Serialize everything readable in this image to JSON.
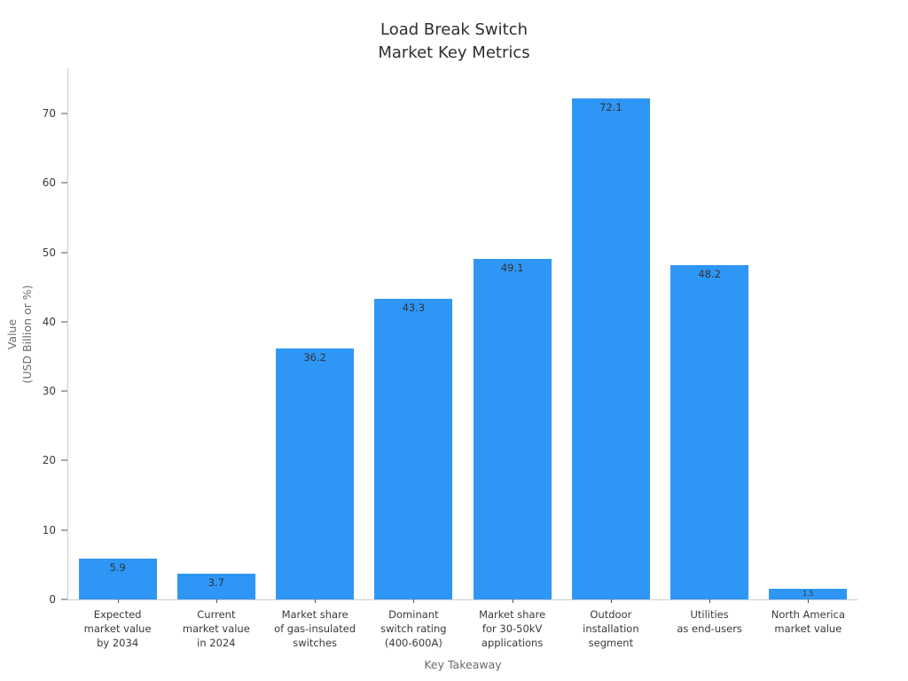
{
  "figure": {
    "title": "Load Break Switch\nMarket Key Metrics",
    "x_axis_title": "Key Takeaway",
    "y_axis_title": "Value\n(USD Billion or %)"
  },
  "chart_data": {
    "type": "bar",
    "title": "Load Break Switch Market Key Metrics",
    "xlabel": "Key Takeaway",
    "ylabel": "Value (USD Billion or %)",
    "categories": [
      "Expected market value by 2034",
      "Current market value in 2024",
      "Market share of gas-insulated switches",
      "Dominant switch rating (400-600A)",
      "Market share for 30-50kV applications",
      "Outdoor installation segment",
      "Utilities as end-users",
      "North America market value"
    ],
    "category_lines": [
      "Expected\nmarket value\nby 2034",
      "Current\nmarket value\nin 2024",
      "Market share\nof gas-insulated\nswitches",
      "Dominant\nswitch rating\n(400-600A)",
      "Market share\nfor 30-50kV\napplications",
      "Outdoor\ninstallation\nsegment",
      "Utilities\nas end-users",
      "North America\nmarket value"
    ],
    "values": [
      5.9,
      3.7,
      36.2,
      43.3,
      49.1,
      72.1,
      48.2,
      1.5
    ],
    "value_labels": [
      "5.9",
      "3.7",
      "36.2",
      "43.3",
      "49.1",
      "72.1",
      "48.2",
      "1.5"
    ],
    "ylim": [
      0,
      76.5
    ],
    "yticks": [
      0,
      10,
      20,
      30,
      40,
      50,
      60,
      70
    ],
    "grid": false,
    "legend": "none",
    "colors": {
      "bar": "#2E96F5",
      "background": "#ffffff",
      "title_text": "#2e2e2e",
      "tick_text": "#3a3a3a",
      "axis_title_text": "#6b6b6b",
      "value_label_text": "#333333",
      "spine": "#cdcdcd",
      "tick_mark": "#555555"
    }
  }
}
